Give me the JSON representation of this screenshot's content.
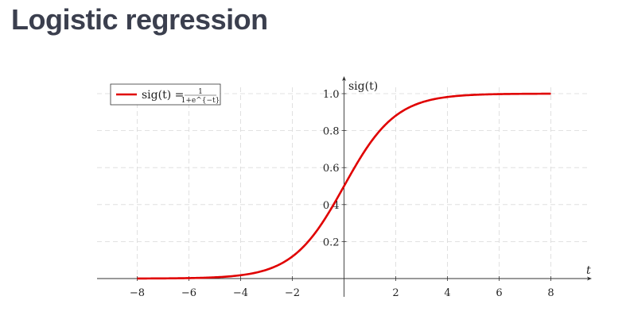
{
  "page": {
    "title": "Logistic regression"
  },
  "chart_data": {
    "type": "line",
    "title": "",
    "xlabel": "t",
    "ylabel": "sig(t)",
    "xlim": [
      -9.5,
      9.5
    ],
    "ylim": [
      0,
      1.1
    ],
    "xticks": [
      -8,
      -6,
      -4,
      -2,
      2,
      4,
      6,
      8
    ],
    "xtick_labels": [
      "−8",
      "−6",
      "−4",
      "−2",
      "2",
      "4",
      "6",
      "8"
    ],
    "yticks": [
      0.2,
      0.4,
      0.6,
      0.8,
      1.0
    ],
    "ytick_labels": [
      "0.2",
      "0.4",
      "0.6",
      "0.8",
      "1.0"
    ],
    "grid": true,
    "legend_position": "top-left",
    "series": [
      {
        "name": "sig(t) = 1/(1+e^{−t})",
        "legend_lhs": "sig(t) = ",
        "legend_num": "1",
        "legend_den": "1+e^{−t}",
        "color": "#e00000",
        "function": "1/(1+exp(-t))",
        "domain": [
          -8,
          8
        ]
      }
    ]
  }
}
